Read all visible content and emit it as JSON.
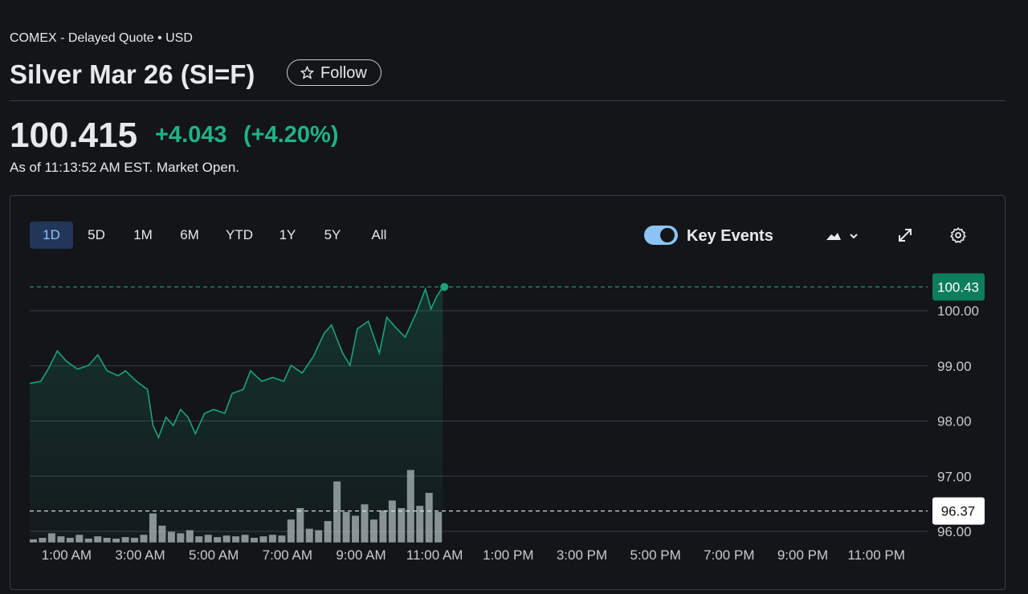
{
  "header": {
    "exchange": "COMEX - Delayed Quote • USD",
    "title": "Silver Mar 26 (SI=F)",
    "follow": "Follow",
    "price": "100.415",
    "change": "+4.043",
    "change_pct": "(+4.20%)",
    "as_of": "As of 11:13:52 AM EST. Market Open."
  },
  "ranges": [
    "1D",
    "5D",
    "1M",
    "6M",
    "YTD",
    "1Y",
    "5Y",
    "All"
  ],
  "key_events": "Key Events",
  "chart_data": {
    "type": "line",
    "x": [
      0,
      0.3,
      0.5,
      0.75,
      1.0,
      1.3,
      1.6,
      1.85,
      2.1,
      2.4,
      2.6,
      2.9,
      3.2,
      3.35,
      3.5,
      3.7,
      3.9,
      4.1,
      4.3,
      4.5,
      4.75,
      5.0,
      5.3,
      5.5,
      5.8,
      6.0,
      6.3,
      6.6,
      6.9,
      7.1,
      7.4,
      7.7,
      8.0,
      8.2,
      8.5,
      8.7,
      8.9,
      9.2,
      9.5,
      9.7,
      9.95,
      10.2,
      10.5,
      10.75,
      10.9,
      11.05,
      11.22
    ],
    "series": [
      {
        "color": "#1aa37a",
        "values": [
          98.68,
          98.72,
          98.94,
          99.27,
          99.08,
          98.94,
          99.01,
          99.2,
          98.91,
          98.82,
          98.91,
          98.72,
          98.57,
          97.92,
          97.7,
          98.07,
          97.92,
          98.21,
          98.07,
          97.77,
          98.14,
          98.21,
          98.14,
          98.5,
          98.57,
          98.91,
          98.72,
          98.79,
          98.72,
          99.01,
          98.87,
          99.16,
          99.59,
          99.74,
          99.23,
          99.01,
          99.67,
          99.81,
          99.23,
          99.88,
          99.69,
          99.52,
          99.96,
          100.39,
          100.03,
          100.25,
          100.43
        ]
      }
    ],
    "current_price": 100.43,
    "previous_close": 96.37,
    "xlim": [
      0,
      24
    ],
    "xticks": [
      {
        "value": 1,
        "label": "1:00 AM"
      },
      {
        "value": 3,
        "label": "3:00 AM"
      },
      {
        "value": 5,
        "label": "5:00 AM"
      },
      {
        "value": 7,
        "label": "7:00 AM"
      },
      {
        "value": 9,
        "label": "9:00 AM"
      },
      {
        "value": 11,
        "label": "11:00 AM"
      },
      {
        "value": 13,
        "label": "1:00 PM"
      },
      {
        "value": 15,
        "label": "3:00 PM"
      },
      {
        "value": 17,
        "label": "5:00 PM"
      },
      {
        "value": 19,
        "label": "7:00 PM"
      },
      {
        "value": 21,
        "label": "9:00 PM"
      },
      {
        "value": 23,
        "label": "11:00 PM"
      }
    ],
    "ylim": [
      95.8,
      100.6
    ],
    "yticks": [
      {
        "value": 96,
        "label": "96.00"
      },
      {
        "value": 97,
        "label": "97.00"
      },
      {
        "value": 98,
        "label": "98.00"
      },
      {
        "value": 99,
        "label": "99.00"
      },
      {
        "value": 100,
        "label": "100.00"
      }
    ],
    "grid": true,
    "volume": {
      "color": "#b9bcc2",
      "ylim": [
        0,
        100
      ],
      "x": [
        0,
        0.25,
        0.5,
        0.75,
        1,
        1.25,
        1.5,
        1.75,
        2,
        2.25,
        2.5,
        2.75,
        3,
        3.25,
        3.5,
        3.75,
        4,
        4.25,
        4.5,
        4.75,
        5,
        5.25,
        5.5,
        5.75,
        6,
        6.25,
        6.5,
        6.75,
        7,
        7.25,
        7.5,
        7.75,
        8,
        8.25,
        8.5,
        8.75,
        9,
        9.25,
        9.5,
        9.75,
        10,
        10.25,
        10.5,
        10.75,
        11
      ],
      "values": [
        4,
        6,
        12,
        8,
        6,
        10,
        5,
        8,
        6,
        5,
        7,
        6,
        10,
        38,
        22,
        14,
        12,
        16,
        8,
        10,
        7,
        9,
        8,
        10,
        6,
        8,
        10,
        9,
        30,
        45,
        18,
        16,
        28,
        80,
        40,
        35,
        50,
        30,
        42,
        55,
        45,
        95,
        48,
        65,
        40
      ]
    }
  }
}
